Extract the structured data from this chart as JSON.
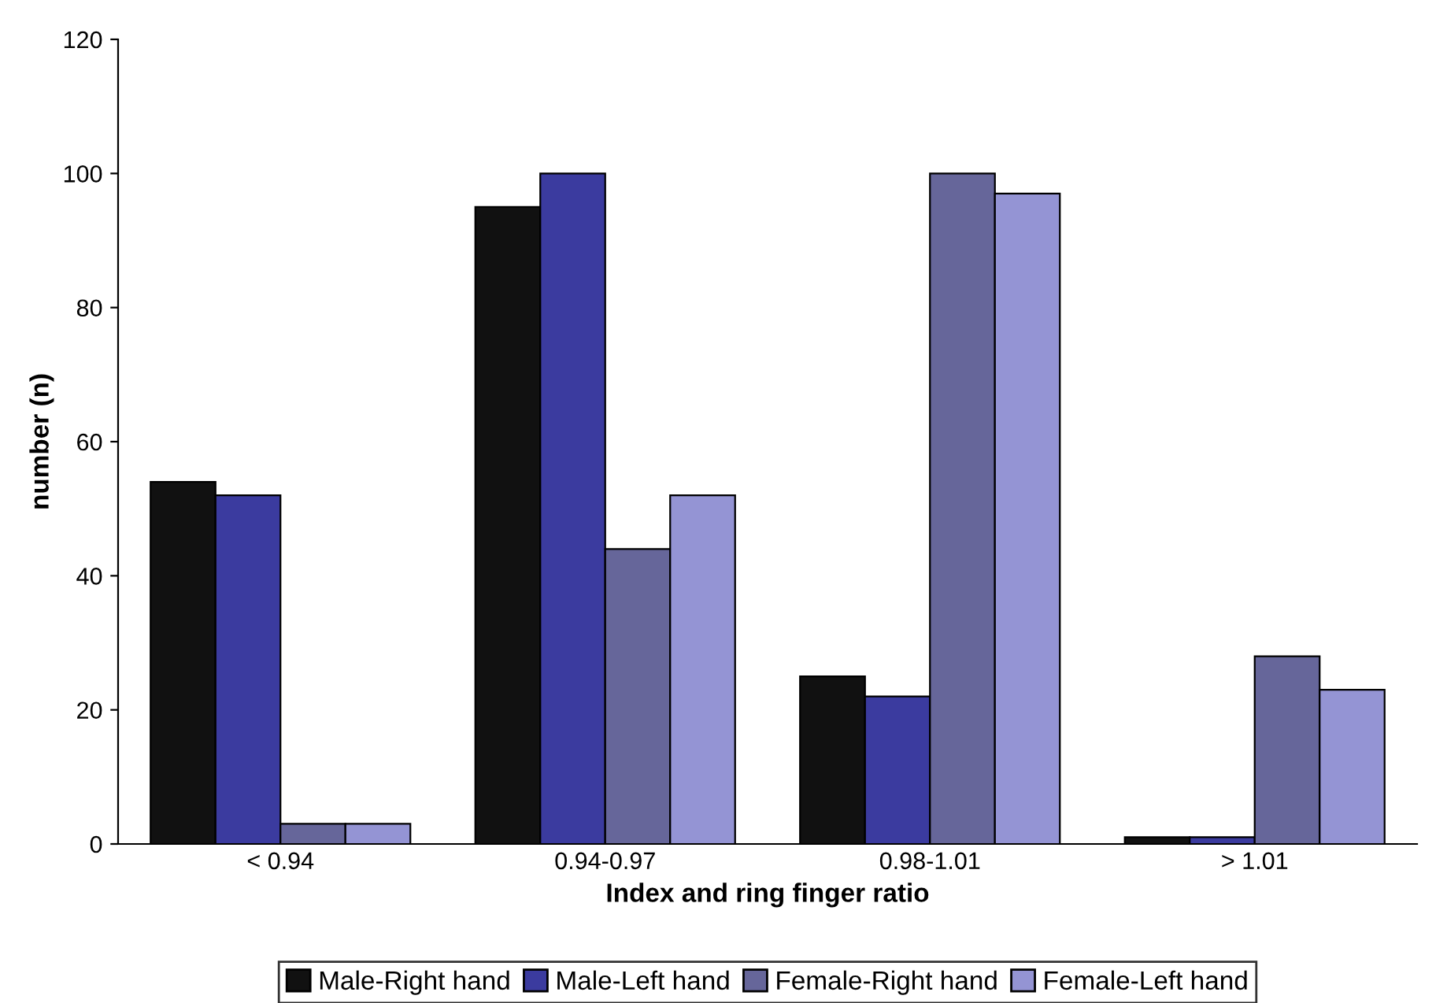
{
  "chart_data": {
    "type": "bar",
    "xlabel": "Index and ring finger ratio",
    "ylabel": "number (n)",
    "categories": [
      "< 0.94",
      "0.94-0.97",
      "0.98-1.01",
      "> 1.01"
    ],
    "series": [
      {
        "name": "Male-Right hand",
        "color": "#111111",
        "values": [
          54,
          95,
          25,
          1
        ]
      },
      {
        "name": "Male-Left hand",
        "color": "#3b3b9f",
        "values": [
          52,
          100,
          22,
          1
        ]
      },
      {
        "name": "Female-Right hand",
        "color": "#66669a",
        "values": [
          3,
          44,
          100,
          28
        ]
      },
      {
        "name": "Female-Left hand",
        "color": "#9494d4",
        "values": [
          3,
          52,
          97,
          23
        ]
      }
    ],
    "ylim": [
      0,
      120
    ],
    "yticks": [
      0,
      20,
      40,
      60,
      80,
      100,
      120
    ],
    "grid": false,
    "legend": "bottom"
  }
}
